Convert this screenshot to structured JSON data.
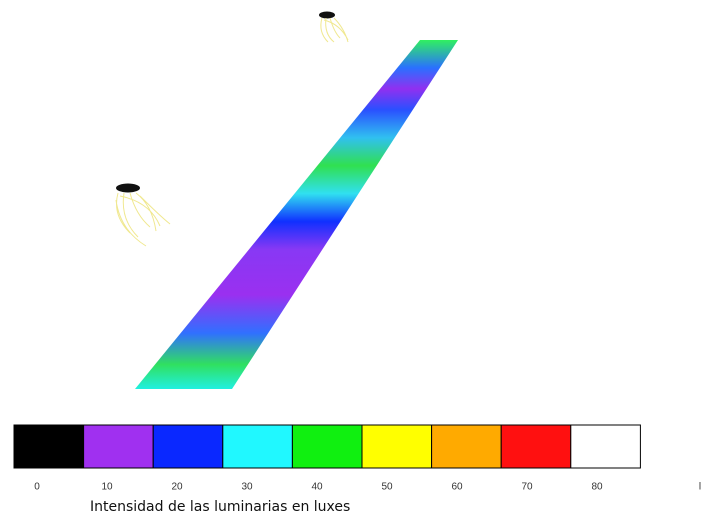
{
  "legend": {
    "colors": [
      "#000000",
      "#a030f0",
      "#0a28ff",
      "#20f8ff",
      "#10f010",
      "#ffff00",
      "#ffaa00",
      "#ff1010",
      "#ffffff"
    ],
    "labels": [
      "0",
      "10",
      "20",
      "30",
      "40",
      "50",
      "60",
      "70",
      "80"
    ],
    "unit_mark": "l"
  },
  "caption": "Intensidad de las luminarias  en luxes"
}
